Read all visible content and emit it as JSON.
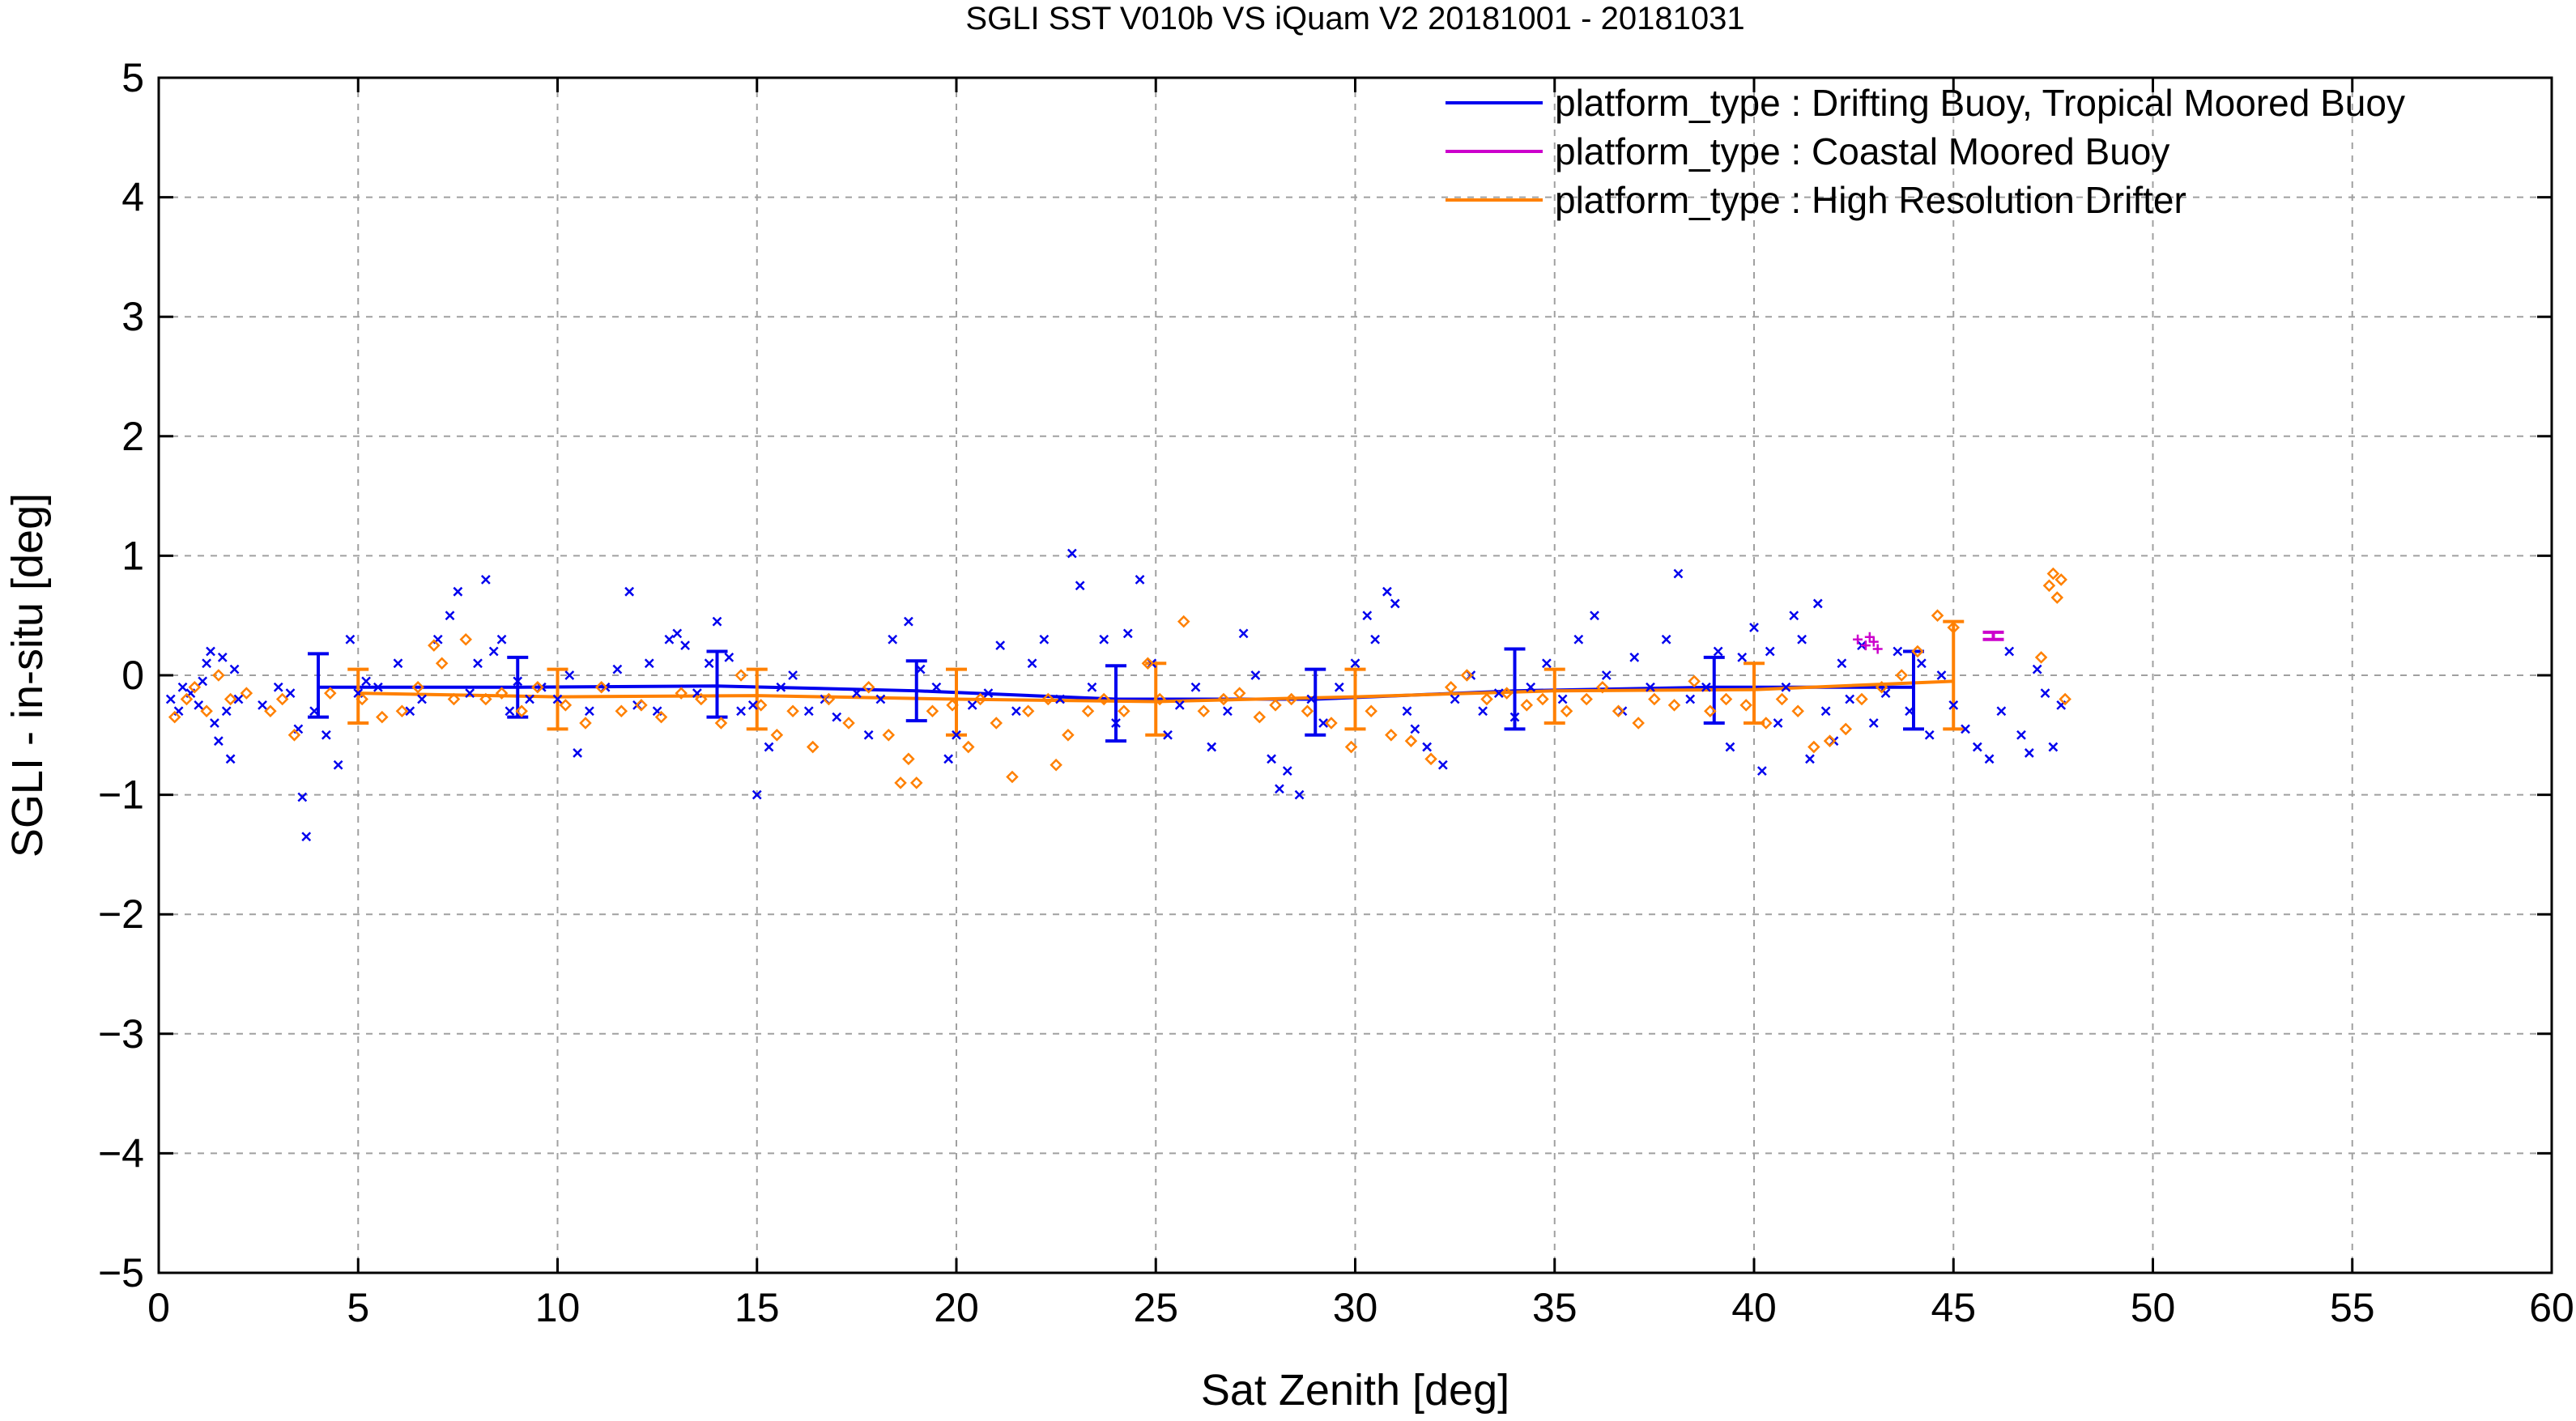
{
  "chart_data": {
    "type": "scatter",
    "title": "SGLI SST V010b VS iQuam V2 20181001 - 20181031",
    "xlabel": "Sat Zenith [deg]",
    "ylabel": "SGLI - in-situ [deg]",
    "xlim": [
      0,
      60
    ],
    "ylim": [
      -5,
      5
    ],
    "xticks": [
      0,
      5,
      10,
      15,
      20,
      25,
      30,
      35,
      40,
      45,
      50,
      55,
      60
    ],
    "yticks": [
      -5,
      -4,
      -3,
      -2,
      -1,
      0,
      1,
      2,
      3,
      4,
      5
    ],
    "xtick_labels": [
      "0",
      "5",
      "10",
      "15",
      "20",
      "25",
      "30",
      "35",
      "40",
      "45",
      "50",
      "55",
      "60"
    ],
    "ytick_labels": [
      "−5",
      "−4",
      "−3",
      "−2",
      "−1",
      "0",
      "1",
      "2",
      "3",
      "4",
      "5"
    ],
    "grid": true,
    "legend_position": "top-right",
    "series": [
      {
        "name": "platform_type : Drifting Buoy, Tropical Moored Buoy",
        "color": "#0000ee",
        "marker": "x",
        "mean_x": [
          4,
          9,
          14,
          19,
          24,
          29,
          34,
          39,
          44
        ],
        "mean_y": [
          -0.1,
          -0.1,
          -0.09,
          -0.13,
          -0.2,
          -0.2,
          -0.13,
          -0.1,
          -0.1
        ],
        "err_low": [
          -0.35,
          -0.35,
          -0.35,
          -0.38,
          -0.55,
          -0.5,
          -0.45,
          -0.4,
          -0.45
        ],
        "err_high": [
          0.18,
          0.15,
          0.2,
          0.12,
          0.08,
          0.05,
          0.22,
          0.15,
          0.2
        ],
        "points": [
          [
            0.3,
            -0.2
          ],
          [
            0.5,
            -0.3
          ],
          [
            0.6,
            -0.1
          ],
          [
            0.8,
            -0.15
          ],
          [
            1.0,
            -0.25
          ],
          [
            1.1,
            -0.05
          ],
          [
            1.2,
            0.1
          ],
          [
            1.3,
            0.2
          ],
          [
            1.4,
            -0.4
          ],
          [
            1.5,
            -0.55
          ],
          [
            1.6,
            0.15
          ],
          [
            1.7,
            -0.3
          ],
          [
            1.8,
            -0.7
          ],
          [
            1.9,
            0.05
          ],
          [
            2.0,
            -0.2
          ],
          [
            2.6,
            -0.25
          ],
          [
            3.0,
            -0.1
          ],
          [
            3.3,
            -0.15
          ],
          [
            3.5,
            -0.45
          ],
          [
            3.6,
            -1.02
          ],
          [
            3.7,
            -1.35
          ],
          [
            3.9,
            -0.3
          ],
          [
            4.2,
            -0.5
          ],
          [
            4.5,
            -0.75
          ],
          [
            4.8,
            0.3
          ],
          [
            5.0,
            -0.15
          ],
          [
            5.2,
            -0.05
          ],
          [
            5.5,
            -0.1
          ],
          [
            6.0,
            0.1
          ],
          [
            6.3,
            -0.3
          ],
          [
            6.6,
            -0.2
          ],
          [
            7.0,
            0.3
          ],
          [
            7.3,
            0.5
          ],
          [
            7.5,
            0.7
          ],
          [
            7.8,
            -0.15
          ],
          [
            8.0,
            0.1
          ],
          [
            8.2,
            0.8
          ],
          [
            8.4,
            0.2
          ],
          [
            8.6,
            0.3
          ],
          [
            8.8,
            -0.3
          ],
          [
            9.0,
            -0.05
          ],
          [
            9.3,
            -0.2
          ],
          [
            9.6,
            -0.1
          ],
          [
            10.0,
            -0.2
          ],
          [
            10.3,
            0.0
          ],
          [
            10.5,
            -0.65
          ],
          [
            10.8,
            -0.3
          ],
          [
            11.2,
            -0.1
          ],
          [
            11.5,
            0.05
          ],
          [
            11.8,
            0.7
          ],
          [
            12.0,
            -0.25
          ],
          [
            12.3,
            0.1
          ],
          [
            12.5,
            -0.3
          ],
          [
            12.8,
            0.3
          ],
          [
            13.0,
            0.35
          ],
          [
            13.2,
            0.25
          ],
          [
            13.5,
            -0.15
          ],
          [
            13.8,
            0.1
          ],
          [
            14.0,
            0.45
          ],
          [
            14.3,
            0.15
          ],
          [
            14.6,
            -0.3
          ],
          [
            14.9,
            -0.25
          ],
          [
            15.0,
            -1.0
          ],
          [
            15.3,
            -0.6
          ],
          [
            15.6,
            -0.1
          ],
          [
            15.9,
            0.0
          ],
          [
            16.3,
            -0.3
          ],
          [
            16.7,
            -0.2
          ],
          [
            17.0,
            -0.35
          ],
          [
            17.5,
            -0.15
          ],
          [
            17.8,
            -0.5
          ],
          [
            18.1,
            -0.2
          ],
          [
            18.4,
            0.3
          ],
          [
            18.8,
            0.45
          ],
          [
            19.1,
            0.05
          ],
          [
            19.5,
            -0.1
          ],
          [
            19.8,
            -0.7
          ],
          [
            20.0,
            -0.5
          ],
          [
            20.4,
            -0.25
          ],
          [
            20.8,
            -0.15
          ],
          [
            21.1,
            0.25
          ],
          [
            21.5,
            -0.3
          ],
          [
            21.9,
            0.1
          ],
          [
            22.2,
            0.3
          ],
          [
            22.6,
            -0.2
          ],
          [
            22.9,
            1.02
          ],
          [
            23.1,
            0.75
          ],
          [
            23.4,
            -0.1
          ],
          [
            23.7,
            0.3
          ],
          [
            24.0,
            -0.4
          ],
          [
            24.3,
            0.35
          ],
          [
            24.6,
            0.8
          ],
          [
            24.9,
            0.1
          ],
          [
            25.3,
            -0.5
          ],
          [
            25.6,
            -0.25
          ],
          [
            26.0,
            -0.1
          ],
          [
            26.4,
            -0.6
          ],
          [
            26.8,
            -0.3
          ],
          [
            27.2,
            0.35
          ],
          [
            27.5,
            0.0
          ],
          [
            27.9,
            -0.7
          ],
          [
            28.1,
            -0.95
          ],
          [
            28.3,
            -0.8
          ],
          [
            28.6,
            -1.0
          ],
          [
            28.9,
            -0.2
          ],
          [
            29.2,
            -0.4
          ],
          [
            29.6,
            -0.1
          ],
          [
            30.0,
            0.1
          ],
          [
            30.3,
            0.5
          ],
          [
            30.5,
            0.3
          ],
          [
            30.8,
            0.7
          ],
          [
            31.0,
            0.6
          ],
          [
            31.3,
            -0.3
          ],
          [
            31.5,
            -0.45
          ],
          [
            31.8,
            -0.6
          ],
          [
            32.2,
            -0.75
          ],
          [
            32.5,
            -0.2
          ],
          [
            32.9,
            0.0
          ],
          [
            33.2,
            -0.3
          ],
          [
            33.6,
            -0.15
          ],
          [
            34.0,
            -0.35
          ],
          [
            34.4,
            -0.1
          ],
          [
            34.8,
            0.1
          ],
          [
            35.2,
            -0.2
          ],
          [
            35.6,
            0.3
          ],
          [
            36.0,
            0.5
          ],
          [
            36.3,
            0.0
          ],
          [
            36.7,
            -0.3
          ],
          [
            37.0,
            0.15
          ],
          [
            37.4,
            -0.1
          ],
          [
            37.8,
            0.3
          ],
          [
            38.1,
            0.85
          ],
          [
            38.4,
            -0.2
          ],
          [
            38.8,
            -0.1
          ],
          [
            39.1,
            0.2
          ],
          [
            39.4,
            -0.6
          ],
          [
            39.7,
            0.15
          ],
          [
            40.0,
            0.4
          ],
          [
            40.2,
            -0.8
          ],
          [
            40.4,
            0.2
          ],
          [
            40.6,
            -0.4
          ],
          [
            40.8,
            -0.1
          ],
          [
            41.0,
            0.5
          ],
          [
            41.2,
            0.3
          ],
          [
            41.4,
            -0.7
          ],
          [
            41.6,
            0.6
          ],
          [
            41.8,
            -0.3
          ],
          [
            42.0,
            -0.55
          ],
          [
            42.2,
            0.1
          ],
          [
            42.4,
            -0.2
          ],
          [
            42.7,
            0.25
          ],
          [
            43.0,
            -0.4
          ],
          [
            43.3,
            -0.15
          ],
          [
            43.6,
            0.2
          ],
          [
            43.9,
            -0.3
          ],
          [
            44.2,
            0.1
          ],
          [
            44.4,
            -0.5
          ],
          [
            44.7,
            0.0
          ],
          [
            45.0,
            -0.25
          ],
          [
            45.3,
            -0.45
          ],
          [
            45.6,
            -0.6
          ],
          [
            45.9,
            -0.7
          ],
          [
            46.2,
            -0.3
          ],
          [
            46.4,
            0.2
          ],
          [
            46.7,
            -0.5
          ],
          [
            46.9,
            -0.65
          ],
          [
            47.1,
            0.05
          ],
          [
            47.3,
            -0.15
          ],
          [
            47.5,
            -0.6
          ],
          [
            47.7,
            -0.25
          ]
        ]
      },
      {
        "name": "platform_type : Coastal Moored Buoy",
        "color": "#cc00cc",
        "marker": "+",
        "mean_x": [
          46
        ],
        "mean_y": [
          0.33
        ],
        "err_low": [
          0.3
        ],
        "err_high": [
          0.36
        ],
        "points": [
          [
            42.6,
            0.3
          ],
          [
            42.8,
            0.25
          ],
          [
            42.9,
            0.32
          ],
          [
            43.0,
            0.28
          ],
          [
            43.1,
            0.22
          ]
        ]
      },
      {
        "name": "platform_type : High Resolution Drifter",
        "color": "#ff8000",
        "marker": "diamond",
        "mean_x": [
          5,
          10,
          15,
          20,
          25,
          30,
          35,
          40,
          45
        ],
        "mean_y": [
          -0.15,
          -0.18,
          -0.17,
          -0.2,
          -0.22,
          -0.18,
          -0.13,
          -0.12,
          -0.05
        ],
        "err_low": [
          -0.4,
          -0.45,
          -0.45,
          -0.5,
          -0.5,
          -0.45,
          -0.4,
          -0.4,
          -0.45
        ],
        "err_high": [
          0.05,
          0.05,
          0.05,
          0.05,
          0.1,
          0.05,
          0.05,
          0.1,
          0.45
        ],
        "points": [
          [
            0.4,
            -0.35
          ],
          [
            0.7,
            -0.2
          ],
          [
            0.9,
            -0.1
          ],
          [
            1.2,
            -0.3
          ],
          [
            1.5,
            0.0
          ],
          [
            1.8,
            -0.2
          ],
          [
            2.2,
            -0.15
          ],
          [
            2.8,
            -0.3
          ],
          [
            3.1,
            -0.2
          ],
          [
            3.4,
            -0.5
          ],
          [
            4.3,
            -0.15
          ],
          [
            5.1,
            -0.2
          ],
          [
            5.6,
            -0.35
          ],
          [
            6.1,
            -0.3
          ],
          [
            6.5,
            -0.1
          ],
          [
            6.9,
            0.25
          ],
          [
            7.1,
            0.1
          ],
          [
            7.4,
            -0.2
          ],
          [
            7.7,
            0.3
          ],
          [
            8.2,
            -0.2
          ],
          [
            8.6,
            -0.15
          ],
          [
            9.1,
            -0.3
          ],
          [
            9.5,
            -0.1
          ],
          [
            10.2,
            -0.25
          ],
          [
            10.7,
            -0.4
          ],
          [
            11.1,
            -0.1
          ],
          [
            11.6,
            -0.3
          ],
          [
            12.1,
            -0.25
          ],
          [
            12.6,
            -0.35
          ],
          [
            13.1,
            -0.15
          ],
          [
            13.6,
            -0.2
          ],
          [
            14.1,
            -0.4
          ],
          [
            14.6,
            0.0
          ],
          [
            15.1,
            -0.25
          ],
          [
            15.5,
            -0.5
          ],
          [
            15.9,
            -0.3
          ],
          [
            16.4,
            -0.6
          ],
          [
            16.8,
            -0.2
          ],
          [
            17.3,
            -0.4
          ],
          [
            17.8,
            -0.1
          ],
          [
            18.3,
            -0.5
          ],
          [
            18.6,
            -0.9
          ],
          [
            18.8,
            -0.7
          ],
          [
            19.0,
            -0.9
          ],
          [
            19.4,
            -0.3
          ],
          [
            19.9,
            -0.25
          ],
          [
            20.3,
            -0.6
          ],
          [
            20.6,
            -0.2
          ],
          [
            21.0,
            -0.4
          ],
          [
            21.4,
            -0.85
          ],
          [
            21.8,
            -0.3
          ],
          [
            22.3,
            -0.2
          ],
          [
            22.5,
            -0.75
          ],
          [
            22.8,
            -0.5
          ],
          [
            23.3,
            -0.3
          ],
          [
            23.7,
            -0.2
          ],
          [
            24.2,
            -0.3
          ],
          [
            24.8,
            0.1
          ],
          [
            25.1,
            -0.2
          ],
          [
            25.7,
            0.45
          ],
          [
            26.2,
            -0.3
          ],
          [
            26.7,
            -0.2
          ],
          [
            27.1,
            -0.15
          ],
          [
            27.6,
            -0.35
          ],
          [
            28.0,
            -0.25
          ],
          [
            28.4,
            -0.2
          ],
          [
            28.8,
            -0.3
          ],
          [
            29.4,
            -0.4
          ],
          [
            29.9,
            -0.6
          ],
          [
            30.4,
            -0.3
          ],
          [
            30.9,
            -0.5
          ],
          [
            31.4,
            -0.55
          ],
          [
            31.9,
            -0.7
          ],
          [
            32.4,
            -0.1
          ],
          [
            32.8,
            0.0
          ],
          [
            33.3,
            -0.2
          ],
          [
            33.8,
            -0.15
          ],
          [
            34.3,
            -0.25
          ],
          [
            34.7,
            -0.2
          ],
          [
            35.3,
            -0.3
          ],
          [
            35.8,
            -0.2
          ],
          [
            36.2,
            -0.1
          ],
          [
            36.6,
            -0.3
          ],
          [
            37.1,
            -0.4
          ],
          [
            37.5,
            -0.2
          ],
          [
            38.0,
            -0.25
          ],
          [
            38.5,
            -0.05
          ],
          [
            38.9,
            -0.3
          ],
          [
            39.3,
            -0.2
          ],
          [
            39.8,
            -0.25
          ],
          [
            40.3,
            -0.4
          ],
          [
            40.7,
            -0.2
          ],
          [
            41.1,
            -0.3
          ],
          [
            41.5,
            -0.6
          ],
          [
            41.9,
            -0.55
          ],
          [
            42.3,
            -0.45
          ],
          [
            42.7,
            -0.2
          ],
          [
            43.2,
            -0.1
          ],
          [
            43.7,
            0.0
          ],
          [
            44.1,
            0.2
          ],
          [
            44.6,
            0.5
          ],
          [
            45.0,
            0.4
          ],
          [
            47.2,
            0.15
          ],
          [
            47.4,
            0.75
          ],
          [
            47.5,
            0.85
          ],
          [
            47.6,
            0.65
          ],
          [
            47.7,
            0.8
          ],
          [
            47.8,
            -0.2
          ]
        ]
      }
    ]
  }
}
